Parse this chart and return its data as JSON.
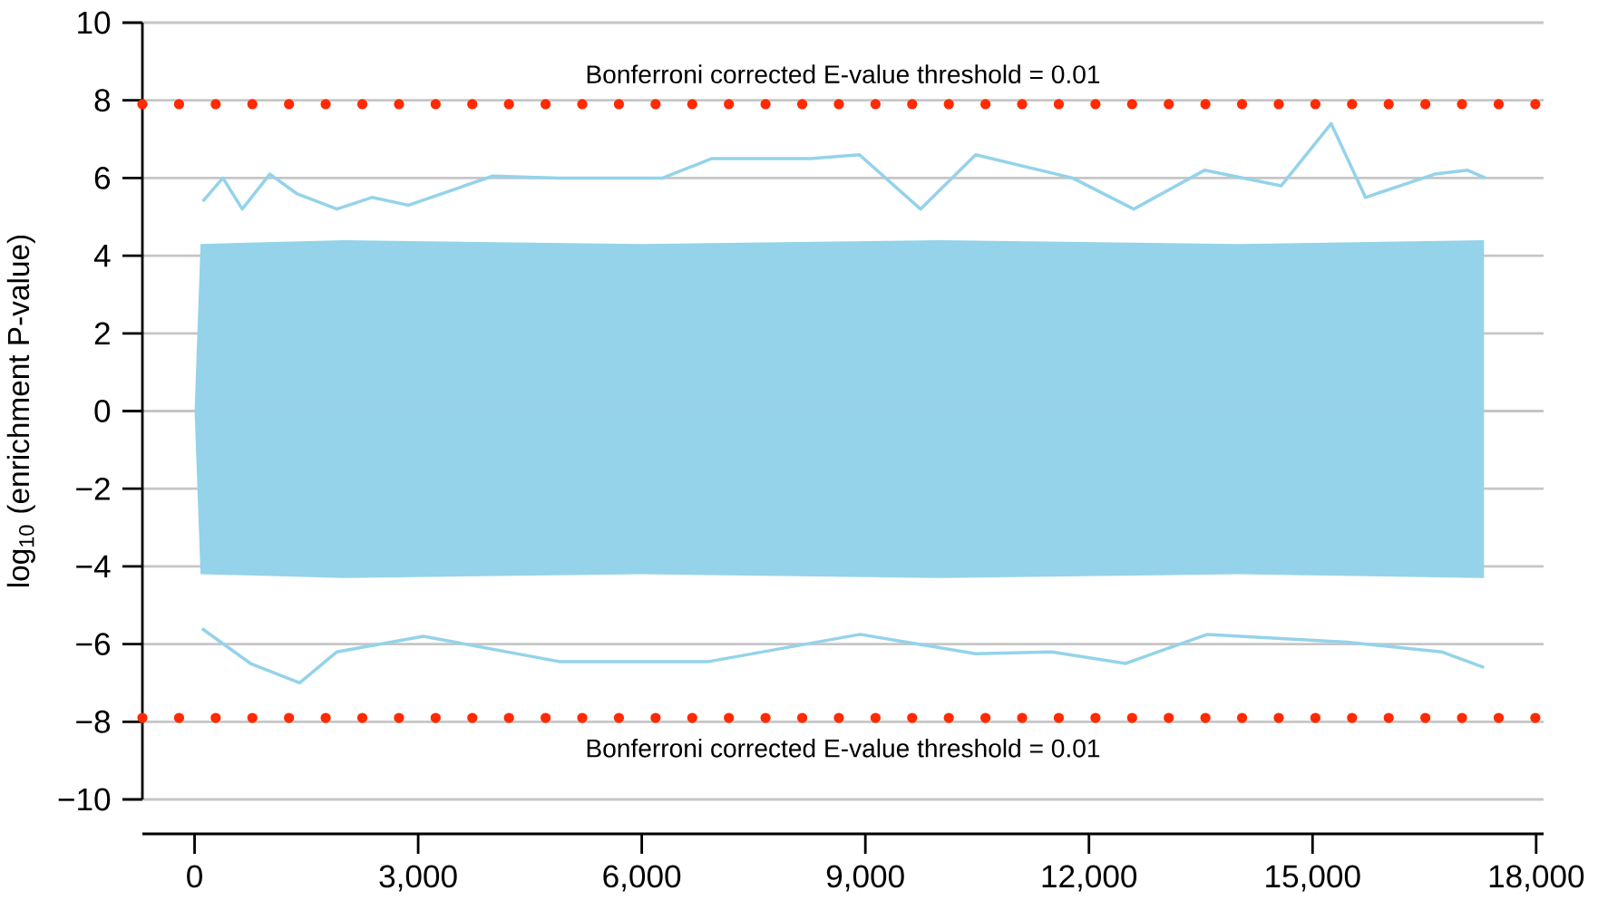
{
  "chart_data": {
    "type": "line",
    "ylabel": "log$_{10}$ (enrichment P-value)",
    "xlim": [
      -700,
      18100
    ],
    "xticks": [
      {
        "value": 0,
        "label": "0"
      },
      {
        "value": 3000,
        "label": "3,000"
      },
      {
        "value": 6000,
        "label": "6,000"
      },
      {
        "value": 9000,
        "label": "9,000"
      },
      {
        "value": 12000,
        "label": "12,000"
      },
      {
        "value": 15000,
        "label": "15,000"
      },
      {
        "value": 18000,
        "label": "18,000"
      }
    ],
    "ylim": [
      -10,
      10
    ],
    "yticks": [
      {
        "value": -10,
        "label": "−10"
      },
      {
        "value": -8,
        "label": "−8"
      },
      {
        "value": -6,
        "label": "−6"
      },
      {
        "value": -4,
        "label": "−4"
      },
      {
        "value": -2,
        "label": "−2"
      },
      0,
      2,
      4,
      6,
      8,
      10
    ],
    "grid": "y",
    "series": [
      {
        "type": "area",
        "color": "#94d3ea",
        "x": [
          0,
          80,
          2000,
          6000,
          10000,
          14000,
          17300
        ],
        "values": [
          0,
          4.3,
          4.4,
          4.3,
          4.4,
          4.3,
          4.4
        ]
      },
      {
        "type": "area",
        "color": "#94d3ea",
        "x": [
          0,
          80,
          2000,
          6000,
          10000,
          14000,
          17300
        ],
        "values": [
          0,
          -4.2,
          -4.3,
          -4.2,
          -4.3,
          -4.2,
          -4.3
        ]
      },
      {
        "color": "#94d3ea",
        "x": [
          110,
          380,
          640,
          1010,
          1370,
          1910,
          2380,
          2870,
          4000,
          4880,
          6280,
          6940,
          8260,
          8920,
          9740,
          10480,
          11780,
          12600,
          13550,
          14580,
          15250,
          15710,
          16640,
          17080,
          17320
        ],
        "values": [
          5.4,
          6.0,
          5.2,
          6.1,
          5.6,
          5.2,
          5.5,
          5.3,
          6.05,
          6.0,
          6.0,
          6.5,
          6.5,
          6.6,
          5.2,
          6.6,
          6.0,
          5.2,
          6.2,
          5.8,
          7.4,
          5.5,
          6.1,
          6.2,
          6.0
        ]
      },
      {
        "color": "#94d3ea",
        "x": [
          100,
          750,
          1410,
          1910,
          3070,
          4890,
          6900,
          8930,
          10480,
          11500,
          12490,
          13590,
          15460,
          16730,
          17300
        ],
        "values": [
          -5.6,
          -6.5,
          -7.0,
          -6.2,
          -5.8,
          -6.45,
          -6.45,
          -5.75,
          -6.25,
          -6.2,
          -6.5,
          -5.75,
          -5.95,
          -6.2,
          -6.6
        ]
      }
    ],
    "ref_lines": [
      {
        "axis": "y",
        "value": 7.9,
        "color": "#ff2a00",
        "line_style": "dotted"
      },
      {
        "axis": "y",
        "value": -7.9,
        "color": "#ff2a00",
        "line_style": "dotted"
      }
    ],
    "annotations": [
      "Bonferroni corrected E-value threshold = 0.01",
      "Bonferroni corrected E-value threshold = 0.01"
    ]
  }
}
